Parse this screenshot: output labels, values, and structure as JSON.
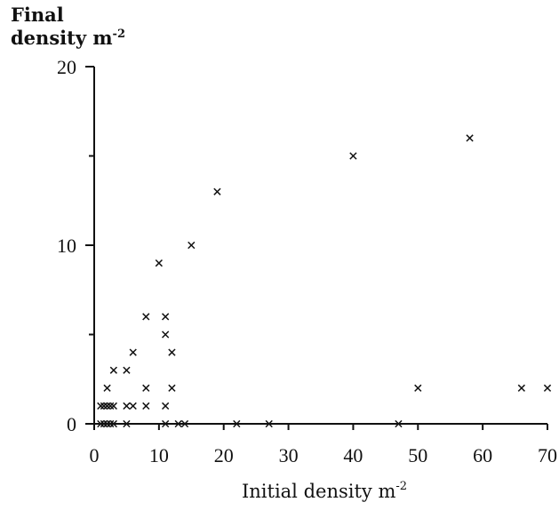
{
  "chart_data": {
    "type": "scatter",
    "title": "",
    "ylabel_line1": "Final",
    "ylabel_line2": "density m",
    "ylabel_exp": "-2",
    "xlabel": "Initial density m",
    "xlabel_exp": "-2",
    "xlim": [
      0,
      70
    ],
    "ylim": [
      0,
      20
    ],
    "x_ticks": [
      0,
      10,
      20,
      30,
      40,
      50,
      60,
      70
    ],
    "y_ticks": [
      0,
      10,
      20
    ],
    "y_minor_ticks": [
      5,
      15
    ],
    "grid": false,
    "marker": "x",
    "points": [
      [
        1,
        0
      ],
      [
        1.5,
        0
      ],
      [
        2,
        0
      ],
      [
        2.5,
        0
      ],
      [
        3,
        0
      ],
      [
        5,
        0
      ],
      [
        11,
        0
      ],
      [
        13,
        0
      ],
      [
        14,
        0
      ],
      [
        22,
        0
      ],
      [
        27,
        0
      ],
      [
        47,
        0
      ],
      [
        1,
        1
      ],
      [
        1.5,
        1
      ],
      [
        2,
        1
      ],
      [
        2.5,
        1
      ],
      [
        3,
        1
      ],
      [
        5,
        1
      ],
      [
        6,
        1
      ],
      [
        8,
        1
      ],
      [
        11,
        1
      ],
      [
        2,
        2
      ],
      [
        8,
        2
      ],
      [
        12,
        2
      ],
      [
        50,
        2
      ],
      [
        66,
        2
      ],
      [
        70,
        2
      ],
      [
        3,
        3
      ],
      [
        5,
        3
      ],
      [
        6,
        4
      ],
      [
        12,
        4
      ],
      [
        11,
        5
      ],
      [
        8,
        6
      ],
      [
        11,
        6
      ],
      [
        10,
        9
      ],
      [
        15,
        10
      ],
      [
        19,
        13
      ],
      [
        40,
        15
      ],
      [
        58,
        16
      ]
    ]
  }
}
